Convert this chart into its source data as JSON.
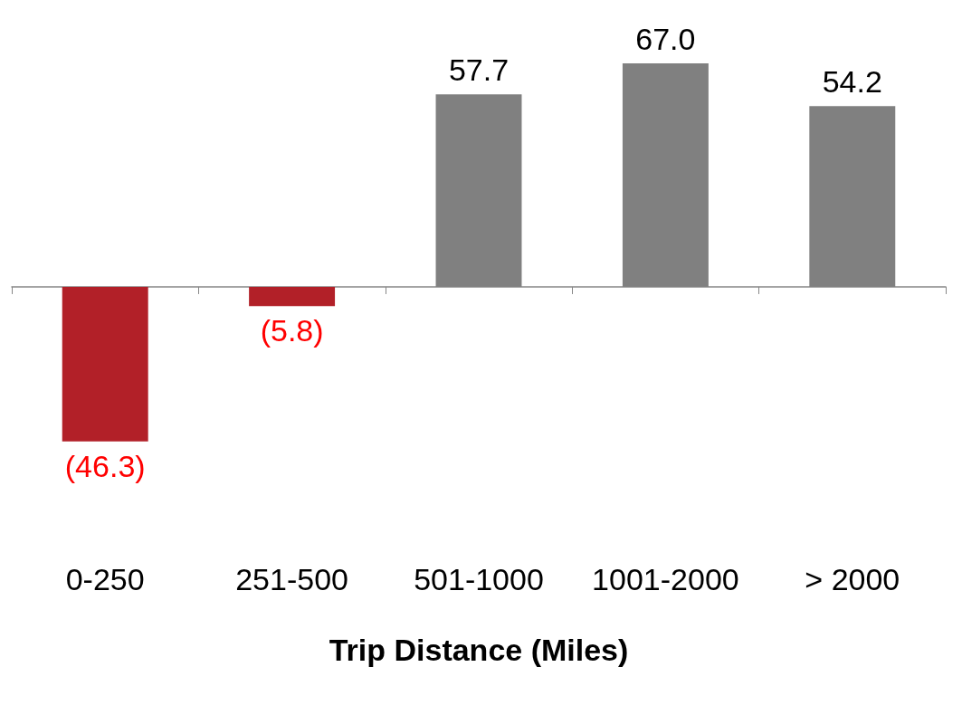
{
  "chart_data": {
    "type": "bar",
    "xlabel": "Trip Distance (Miles)",
    "categories": [
      "0-250",
      "251-500",
      "501-1000",
      "1001-2000",
      "> 2000"
    ],
    "values": [
      -46.3,
      -5.8,
      57.7,
      67.0,
      54.2
    ],
    "colors": [
      "#b22028",
      "#b22028",
      "#808080",
      "#808080",
      "#808080"
    ],
    "value_labels": [
      "(46.3)",
      "(5.8)",
      "57.7",
      "67.0",
      "54.2"
    ]
  }
}
